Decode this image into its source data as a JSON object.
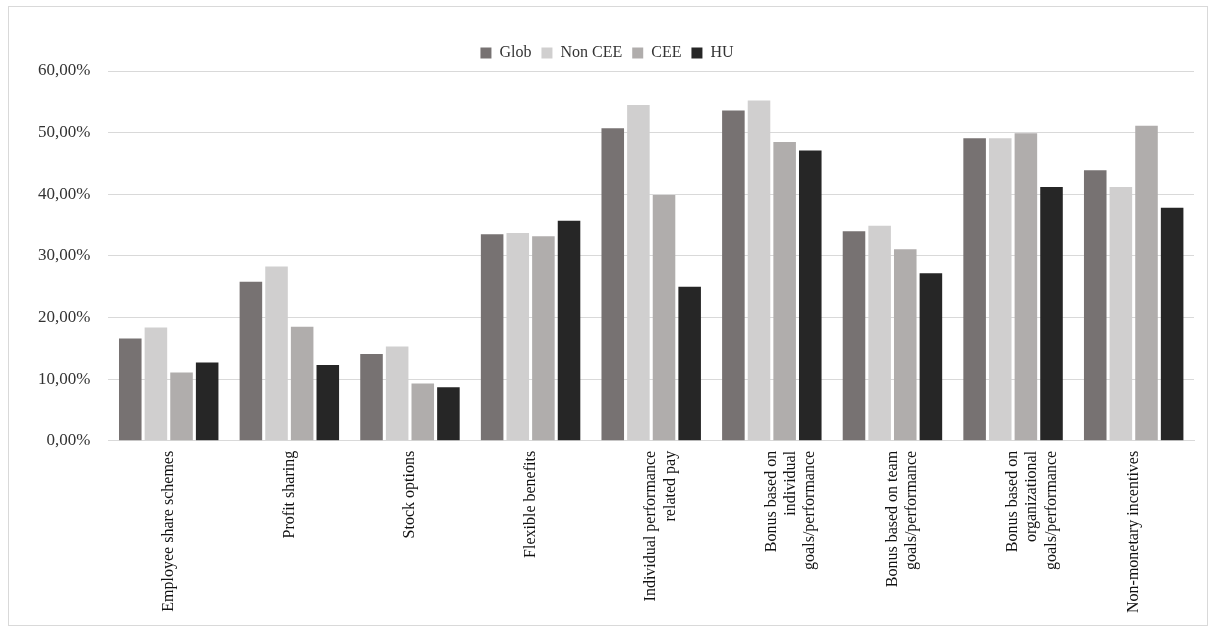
{
  "chart_data": {
    "type": "bar",
    "categories": [
      "Employee share schemes",
      "Profit sharing",
      "Stock options",
      "Flexible benefits",
      "Individual performance related pay",
      "Bonus based on individual goals/performance",
      "Bonus based on team goals/performance",
      "Bonus based on organizational goals/performance",
      "Non-monetary incentives"
    ],
    "series": [
      {
        "name": "Glob",
        "color": "#777272",
        "values": [
          16.6,
          25.8,
          14.1,
          33.5,
          50.7,
          53.6,
          34.0,
          49.1,
          43.9
        ]
      },
      {
        "name": "Non CEE",
        "color": "#d0cfcf",
        "values": [
          18.4,
          28.3,
          15.3,
          33.7,
          54.5,
          55.2,
          34.9,
          49.1,
          41.2
        ]
      },
      {
        "name": "CEE",
        "color": "#b0adac",
        "values": [
          11.1,
          18.5,
          9.3,
          33.2,
          39.9,
          48.5,
          31.1,
          49.9,
          51.1
        ]
      },
      {
        "name": "HU",
        "color": "#262626",
        "values": [
          12.7,
          12.3,
          8.7,
          35.7,
          25.0,
          47.1,
          27.2,
          41.2,
          37.8
        ]
      }
    ],
    "ylim": [
      0,
      60
    ],
    "yticks": [
      {
        "value": 0,
        "label": "0,00%"
      },
      {
        "value": 10,
        "label": "10,00%"
      },
      {
        "value": 20,
        "label": "20,00%"
      },
      {
        "value": 30,
        "label": "30,00%"
      },
      {
        "value": 40,
        "label": "40,00%"
      },
      {
        "value": 50,
        "label": "50,00%"
      },
      {
        "value": 60,
        "label": "60,00%"
      }
    ],
    "grid": "y",
    "legend": "top"
  }
}
